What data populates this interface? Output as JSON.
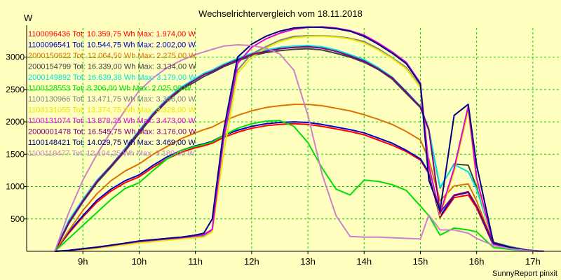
{
  "chart_data": {
    "type": "line",
    "title": "Wechselrichtervergleich vom 18.11.2018",
    "ylabel": "W",
    "xlabel": "",
    "footer": "SunnyReport pinxit",
    "xlim": [
      8.0,
      17.5
    ],
    "ylim": [
      0,
      3450
    ],
    "x_ticks": [
      9,
      10,
      11,
      12,
      13,
      14,
      15,
      16,
      17
    ],
    "x_tick_labels": [
      "9h",
      "10h",
      "11h",
      "12h",
      "13h",
      "14h",
      "15h",
      "16h",
      "17h"
    ],
    "y_ticks": [
      500,
      1000,
      1500,
      2000,
      2500,
      3000
    ],
    "grid": true,
    "legend_position": "top-left",
    "x": [
      8.5,
      8.75,
      9.0,
      9.25,
      9.5,
      9.75,
      10.0,
      10.25,
      10.5,
      10.75,
      11.0,
      11.15,
      11.3,
      11.5,
      11.75,
      12.0,
      12.25,
      12.5,
      12.75,
      13.0,
      13.25,
      13.5,
      13.75,
      14.0,
      14.25,
      14.5,
      14.75,
      15.0,
      15.15,
      15.35,
      15.6,
      15.85,
      16.0,
      16.3,
      16.6,
      16.9,
      17.2
    ],
    "series": [
      {
        "name": "1100096436 Tot: 10.359,75 Wh Max: 1.974,00 W",
        "color": "#ff0000",
        "values": [
          0,
          280,
          530,
          760,
          930,
          1060,
          1150,
          1300,
          1430,
          1530,
          1600,
          1630,
          1670,
          1760,
          1840,
          1900,
          1940,
          1960,
          1970,
          1960,
          1930,
          1890,
          1850,
          1800,
          1720,
          1640,
          1540,
          1410,
          1200,
          520,
          830,
          870,
          670,
          90,
          40,
          10,
          0
        ]
      },
      {
        "name": "1100096541 Tot: 10.544,75 Wh Max: 2.002,00 W",
        "color": "#0000c8",
        "values": [
          0,
          300,
          550,
          790,
          960,
          1090,
          1180,
          1330,
          1460,
          1560,
          1630,
          1660,
          1700,
          1790,
          1870,
          1930,
          1970,
          1990,
          2000,
          1990,
          1960,
          1920,
          1880,
          1830,
          1750,
          1670,
          1560,
          1430,
          1220,
          540,
          860,
          910,
          700,
          95,
          45,
          10,
          0
        ]
      },
      {
        "name": "2000150622 Tot: 12.064,50 Wh Max: 2.275,00 W",
        "color": "#e07000",
        "values": [
          0,
          320,
          630,
          890,
          1090,
          1240,
          1350,
          1500,
          1620,
          1740,
          1830,
          1880,
          1920,
          2010,
          2100,
          2170,
          2220,
          2250,
          2270,
          2270,
          2250,
          2210,
          2170,
          2110,
          2040,
          1960,
          1850,
          1720,
          1420,
          780,
          1010,
          1040,
          780,
          110,
          55,
          15,
          0
        ]
      },
      {
        "name": "2000154799 Tot: 16.339,00 Wh Max: 3.134,00 W",
        "color": "#404040",
        "values": [
          0,
          430,
          760,
          1060,
          1300,
          1550,
          1820,
          2100,
          2320,
          2500,
          2620,
          2700,
          2760,
          2850,
          2940,
          3020,
          3070,
          3100,
          3120,
          3130,
          3110,
          3060,
          3000,
          2920,
          2810,
          2660,
          2440,
          2220,
          1870,
          980,
          1350,
          1330,
          990,
          140,
          70,
          20,
          0
        ]
      },
      {
        "name": "2000149892 Tot: 16.639,38 Wh Max: 3.179,00 W",
        "color": "#00e0e0",
        "values": [
          0,
          480,
          800,
          1100,
          1330,
          1590,
          1870,
          2140,
          2360,
          2540,
          2670,
          2750,
          2800,
          2890,
          2980,
          3060,
          3110,
          3150,
          3170,
          3180,
          3160,
          3110,
          3040,
          2960,
          2840,
          2690,
          2470,
          2240,
          1890,
          990,
          1340,
          1230,
          960,
          130,
          65,
          20,
          0
        ]
      },
      {
        "name": "1100128553 Tot: 8.306,00 Wh Max: 2.025,00 W",
        "color": "#00e000",
        "values": [
          0,
          200,
          400,
          600,
          800,
          970,
          1060,
          1250,
          1430,
          1560,
          1620,
          1650,
          1690,
          1790,
          1900,
          1970,
          2010,
          2020,
          1930,
          1680,
          1290,
          960,
          870,
          1100,
          1080,
          1030,
          940,
          700,
          550,
          250,
          360,
          330,
          300,
          60,
          30,
          10,
          0
        ]
      },
      {
        "name": "1100130966 Tot: 13.471,75 Wh Max: 3.336,00 W",
        "color": "#808080",
        "values": [
          0,
          10,
          30,
          50,
          80,
          110,
          140,
          160,
          180,
          200,
          220,
          240,
          330,
          1700,
          2800,
          3050,
          3160,
          3260,
          3320,
          3330,
          3330,
          3320,
          3290,
          3240,
          3130,
          2990,
          2840,
          2540,
          1300,
          560,
          1250,
          2200,
          1100,
          100,
          50,
          10,
          0
        ]
      },
      {
        "name": "1100131055 Tot: 13.374,75 Wh Max: 3.328,00 W",
        "color": "#e8e800",
        "values": [
          0,
          10,
          25,
          45,
          75,
          100,
          130,
          150,
          170,
          190,
          210,
          220,
          300,
          1500,
          2750,
          3000,
          3140,
          3240,
          3300,
          3320,
          3325,
          3310,
          3280,
          3220,
          3110,
          2980,
          2820,
          2530,
          1290,
          550,
          1230,
          2170,
          1080,
          95,
          45,
          10,
          0
        ]
      },
      {
        "name": "1100131074 Tot: 13.878,25 Wh Max: 3.473,00 W",
        "color": "#e000e0",
        "values": [
          0,
          12,
          35,
          60,
          90,
          120,
          150,
          170,
          190,
          210,
          235,
          260,
          340,
          1750,
          2900,
          3150,
          3280,
          3370,
          3430,
          3460,
          3470,
          3450,
          3410,
          3340,
          3220,
          3080,
          2920,
          2600,
          1320,
          580,
          1280,
          2240,
          1130,
          110,
          55,
          15,
          0
        ]
      },
      {
        "name": "2000001478 Tot: 16.545,75 Wh Max: 3.176,00 W",
        "color": "#800080",
        "values": [
          0,
          450,
          780,
          1080,
          1320,
          1570,
          1850,
          2120,
          2340,
          2520,
          2650,
          2730,
          2780,
          2870,
          2960,
          3040,
          3090,
          3130,
          3150,
          3160,
          3140,
          3090,
          3020,
          2940,
          2820,
          2680,
          2460,
          2230,
          1880,
          600,
          870,
          920,
          700,
          125,
          60,
          20,
          0
        ]
      },
      {
        "name": "1100148421 Tot: 14.029,75 Wh Max: 3.469,00 W",
        "color": "#000080",
        "values": [
          0,
          15,
          40,
          65,
          95,
          125,
          160,
          180,
          200,
          220,
          250,
          280,
          500,
          1850,
          3000,
          3200,
          3320,
          3400,
          3450,
          3465,
          3460,
          3440,
          3400,
          3320,
          3200,
          3060,
          2900,
          2580,
          1100,
          630,
          2100,
          2270,
          1330,
          130,
          60,
          15,
          0
        ]
      },
      {
        "name": "1100119477 Tot: 12.104,25 Wh Max: 3.189,00 W",
        "color": "#cc80cc",
        "values": [
          0,
          600,
          1100,
          1500,
          1850,
          2180,
          2480,
          2680,
          2840,
          2950,
          3040,
          3080,
          3120,
          3170,
          3190,
          3180,
          3140,
          3050,
          2800,
          2100,
          1200,
          550,
          230,
          220,
          220,
          210,
          200,
          190,
          560,
          330,
          330,
          280,
          200,
          90,
          40,
          10,
          0
        ]
      }
    ]
  }
}
